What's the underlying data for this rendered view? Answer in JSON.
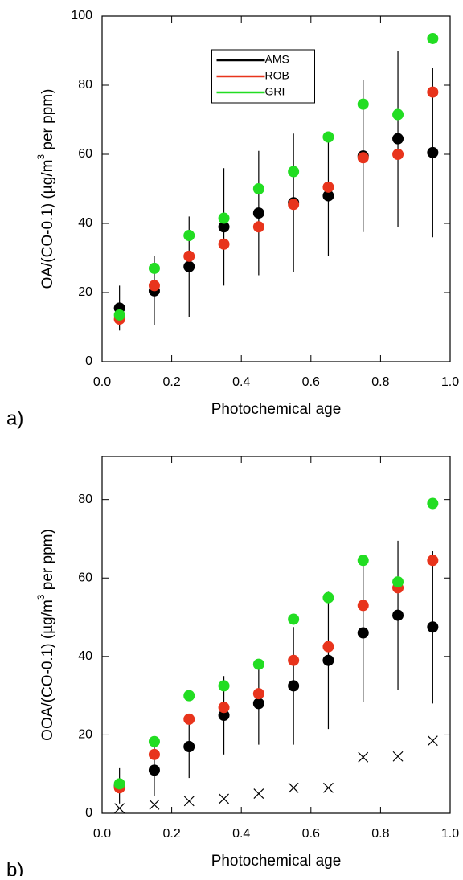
{
  "chart_data": [
    {
      "type": "scatter",
      "panel_label": "a)",
      "xlabel": "Photochemical age",
      "ylabel": [
        "OA/(CO-0.1) (µg/m",
        "3",
        "  per ppm)"
      ],
      "x": [
        0.05,
        0.15,
        0.25,
        0.35,
        0.45,
        0.55,
        0.65,
        0.75,
        0.85,
        0.95
      ],
      "xlim": [
        0,
        1
      ],
      "xticks": [
        {
          "value": 0,
          "label": "0.0"
        },
        0.2,
        0.4,
        0.6,
        0.8,
        {
          "value": 1,
          "label": "1.0"
        }
      ],
      "ylim": [
        0,
        100
      ],
      "yticks": [
        0,
        20,
        40,
        60,
        80,
        100
      ],
      "legend": "upper center",
      "series": [
        {
          "name": "AMS",
          "color": "#000000",
          "marker": "dot",
          "values": [
            15.5,
            20.5,
            27.5,
            39,
            43,
            46,
            48,
            59.5,
            64.5,
            60.5
          ],
          "errors": [
            6.5,
            10,
            14.5,
            17,
            18,
            20,
            17.5,
            22,
            25.5,
            24.5
          ]
        },
        {
          "name": "ROB",
          "color": "#e8341c",
          "marker": "dot",
          "values": [
            12.3,
            22,
            30.5,
            34,
            39,
            45.5,
            50.5,
            59,
            60,
            78
          ]
        },
        {
          "name": "GRI",
          "color": "#22dd22",
          "marker": "dot",
          "values": [
            13.5,
            27,
            36.5,
            41.5,
            50,
            55,
            65,
            74.5,
            71.5,
            93.5
          ]
        }
      ]
    },
    {
      "type": "scatter",
      "panel_label": "b)",
      "xlabel": "Photochemical age",
      "ylabel": [
        "OOA/(CO-0.1) (µg/m",
        "3",
        "  per ppm)"
      ],
      "x": [
        0.05,
        0.15,
        0.25,
        0.35,
        0.45,
        0.55,
        0.65,
        0.75,
        0.85,
        0.95
      ],
      "xlim": [
        0,
        1
      ],
      "xticks": [
        {
          "value": 0,
          "label": "0.0"
        },
        0.2,
        0.4,
        0.6,
        0.8,
        {
          "value": 1,
          "label": "1.0"
        }
      ],
      "ylim": [
        0,
        91
      ],
      "yticks": [
        0,
        20,
        40,
        60,
        80
      ],
      "series": [
        {
          "color": "#000000",
          "marker": "dot",
          "values": [
            7,
            11,
            17,
            25,
            28,
            32.5,
            39,
            46,
            50.5,
            47.5
          ],
          "errors": [
            4.5,
            6.5,
            8,
            10,
            10.5,
            15,
            17.5,
            17.5,
            19,
            19.5
          ]
        },
        {
          "color": "#e8341c",
          "marker": "dot",
          "values": [
            6.5,
            15,
            24,
            27,
            30.5,
            39,
            42.5,
            53,
            57.5,
            64.5
          ]
        },
        {
          "color": "#22dd22",
          "marker": "dot",
          "values": [
            7.5,
            18.3,
            30,
            32.5,
            38,
            49.5,
            55,
            64.5,
            59,
            79
          ]
        },
        {
          "color": "#000000",
          "marker": "x",
          "values": [
            1.3,
            2.2,
            3.1,
            3.7,
            5,
            6.5,
            6.5,
            14.3,
            14.5,
            18.5
          ]
        }
      ]
    }
  ]
}
